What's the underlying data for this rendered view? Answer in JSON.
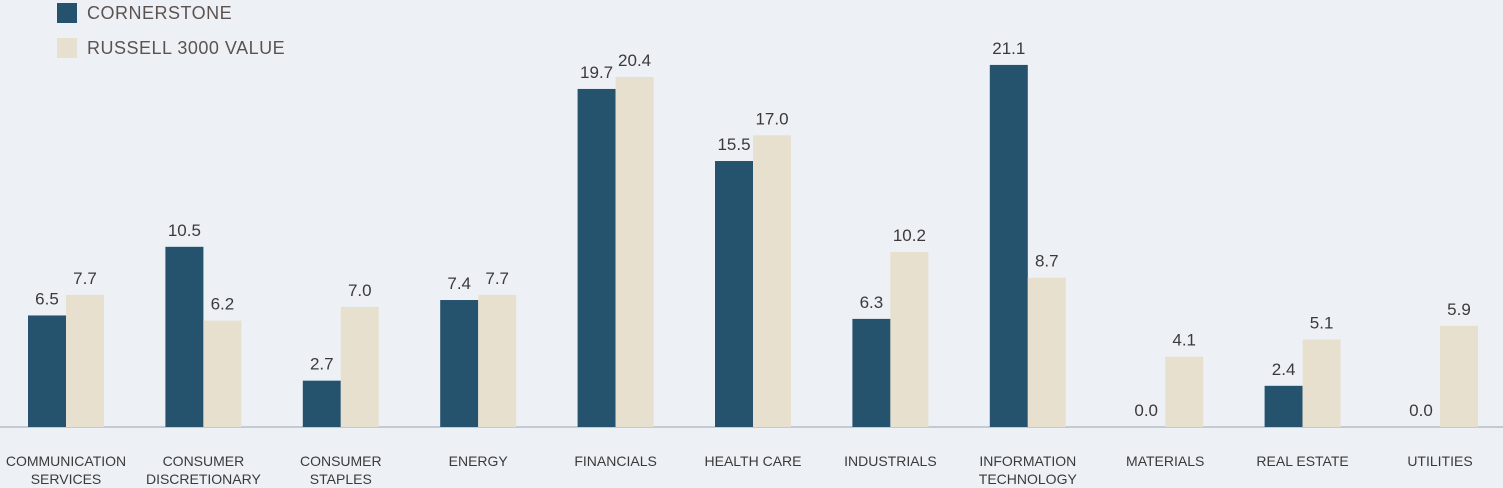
{
  "colors": {
    "cornerstone": "#25526d",
    "russell": "#e8e0cf",
    "label_text": "#3a3a3a",
    "axis": "#9aa4ad",
    "background": "#edf1f6"
  },
  "legend": {
    "items": [
      {
        "label": "CORNERSTONE",
        "color": "#25526d"
      },
      {
        "label": "RUSSELL 3000 VALUE",
        "color": "#e8e0cf"
      }
    ]
  },
  "chart_data": {
    "type": "bar",
    "categories": [
      [
        "COMMUNICATION",
        "SERVICES"
      ],
      [
        "CONSUMER",
        "DISCRETIONARY"
      ],
      [
        "CONSUMER",
        "STAPLES"
      ],
      [
        "ENERGY"
      ],
      [
        "FINANCIALS"
      ],
      [
        "HEALTH CARE"
      ],
      [
        "INDUSTRIALS"
      ],
      [
        "INFORMATION",
        "TECHNOLOGY"
      ],
      [
        "MATERIALS"
      ],
      [
        "REAL ESTATE"
      ],
      [
        "UTILITIES"
      ]
    ],
    "series": [
      {
        "name": "CORNERSTONE",
        "values": [
          6.5,
          10.5,
          2.7,
          7.4,
          19.7,
          15.5,
          6.3,
          21.1,
          0.0,
          2.4,
          0.0
        ]
      },
      {
        "name": "RUSSELL 3000 VALUE",
        "values": [
          7.7,
          6.2,
          7.0,
          7.7,
          20.4,
          17.0,
          10.2,
          8.7,
          4.1,
          5.1,
          5.9
        ]
      }
    ],
    "data_labels": [
      [
        "6.5",
        "10.5",
        "2.7",
        "7.4",
        "19.7",
        "15.5",
        "6.3",
        "21.1",
        "0.0",
        "2.4",
        "0.0"
      ],
      [
        "7.7",
        "6.2",
        "7.0",
        "7.7",
        "20.4",
        "17.0",
        "10.2",
        "8.7",
        "4.1",
        "5.1",
        "5.9"
      ]
    ],
    "title": "",
    "xlabel": "",
    "ylabel": "",
    "ylim": [
      0,
      21.1
    ],
    "grid": false,
    "legend_position": "top-left"
  }
}
